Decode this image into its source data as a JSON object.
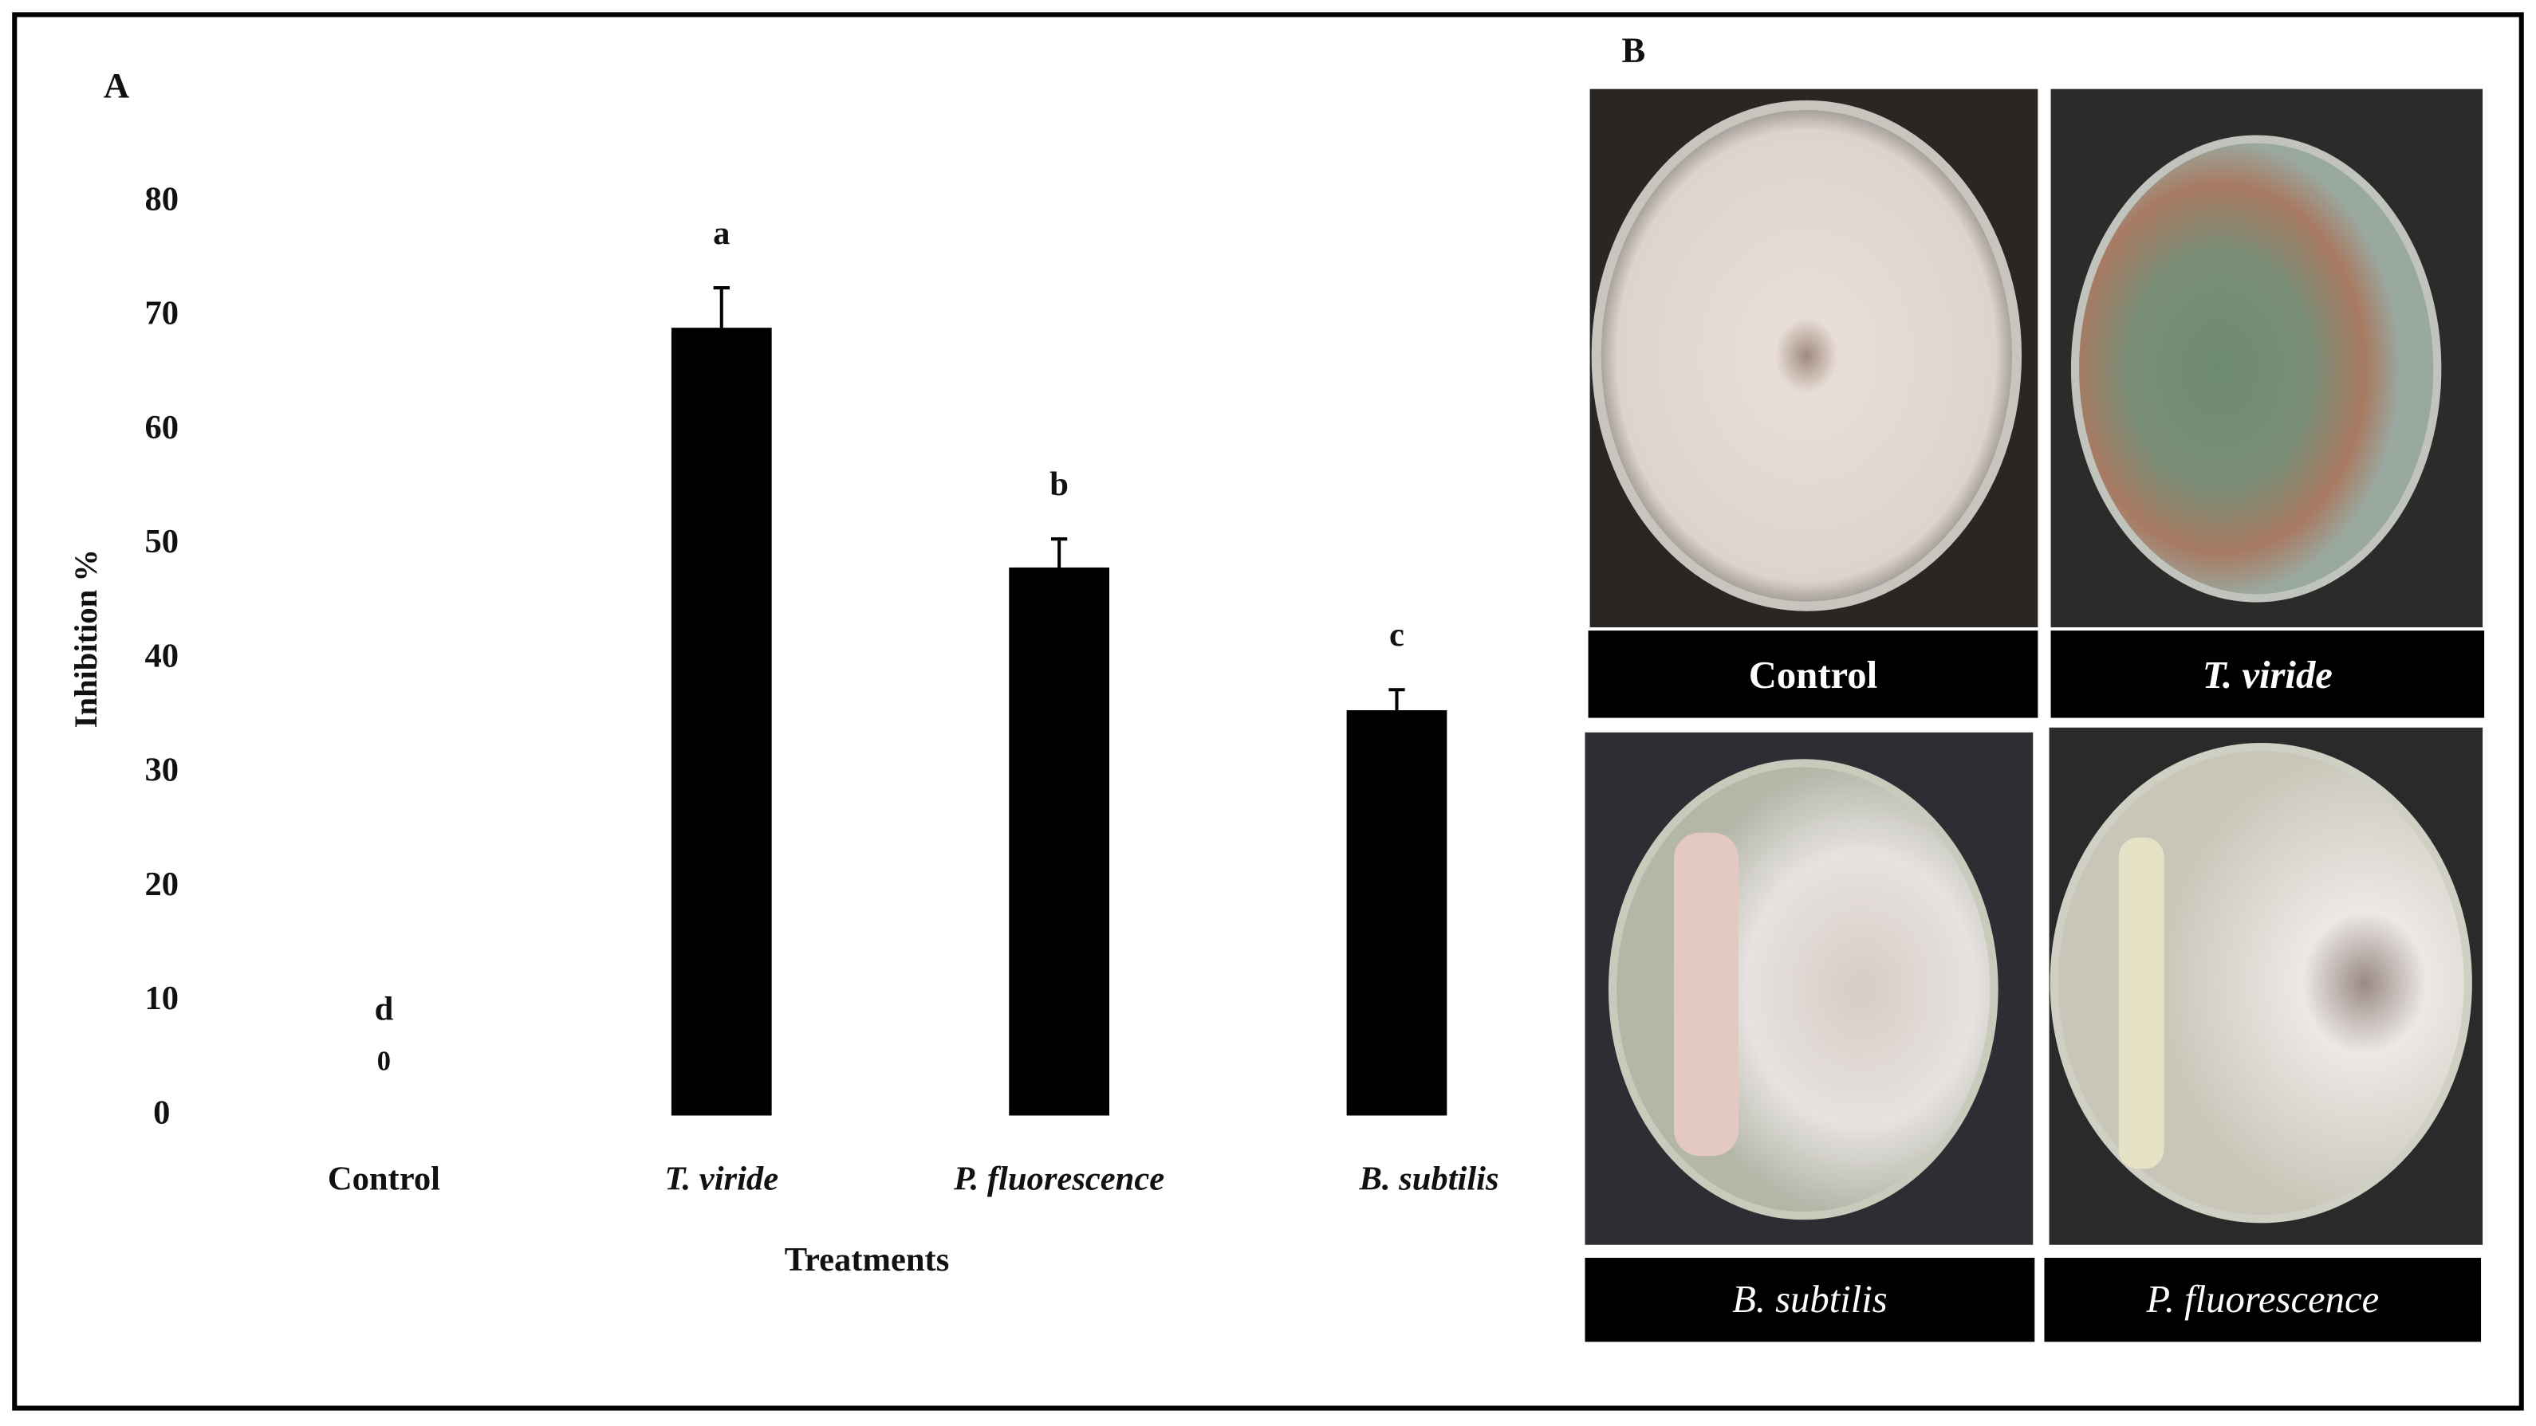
{
  "chart_data": {
    "type": "bar",
    "panel_label": "A",
    "x_label": "Treatments",
    "y_label": "Inhibition %",
    "categories": [
      "Control",
      "T. viride",
      "P. fluorescence",
      "B. subtilis"
    ],
    "values": [
      0,
      69,
      48,
      35.5
    ],
    "errors": [
      null,
      3.5,
      2.5,
      1.8
    ],
    "letters": [
      "d",
      "a",
      "b",
      "c"
    ],
    "color": "#000000",
    "ylim": [
      0,
      80
    ],
    "yticks": [
      0,
      10,
      20,
      30,
      40,
      50,
      60,
      70,
      80
    ],
    "grid": false
  },
  "panel_b": {
    "label": "B",
    "photos": [
      "Control",
      "T. viride",
      "B. subtilis",
      "P. fluorescence"
    ]
  }
}
